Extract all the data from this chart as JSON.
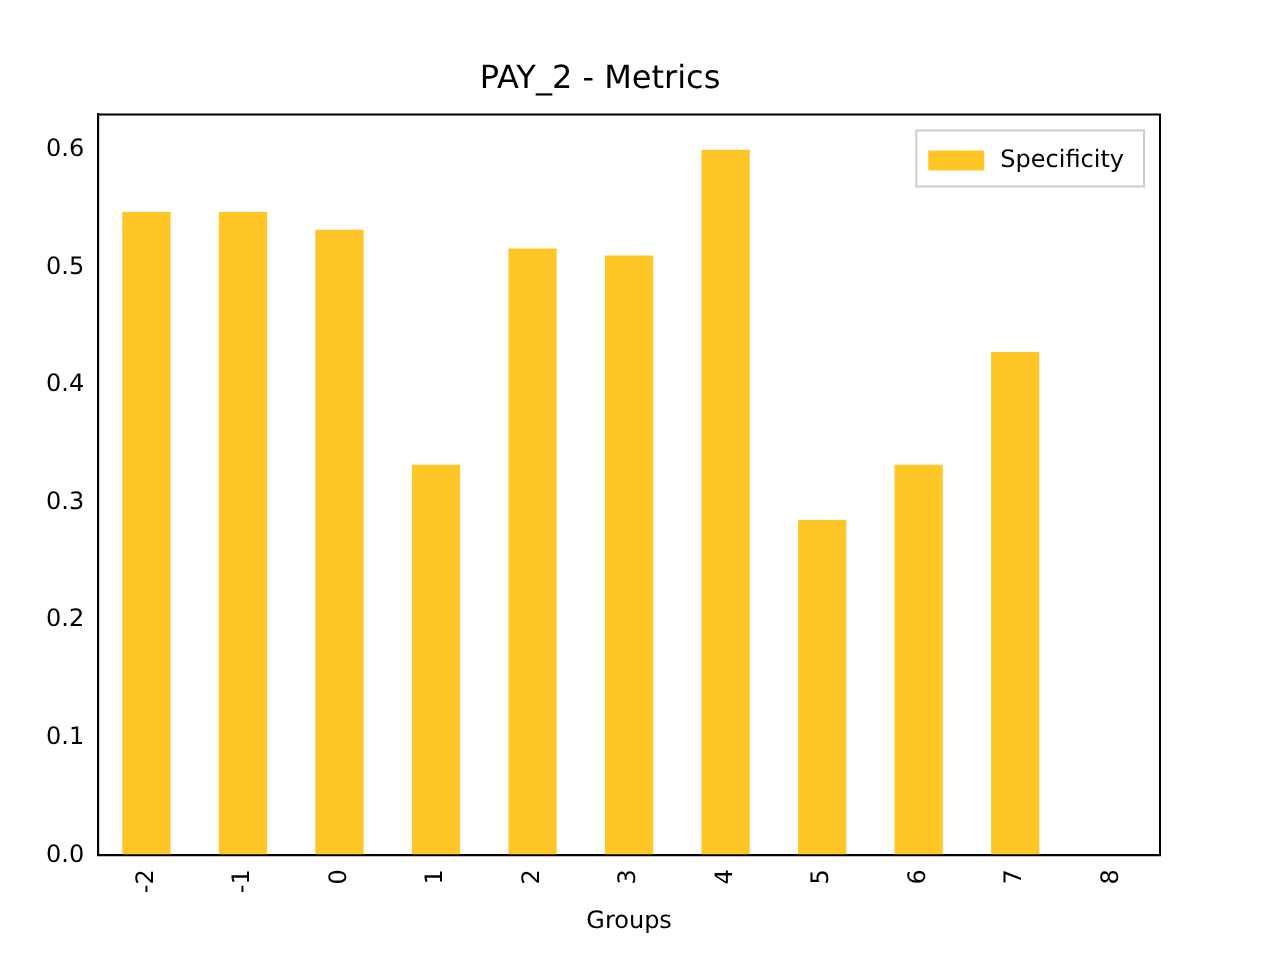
{
  "chart_data": {
    "type": "bar",
    "title": "PAY_2 - Metrics",
    "xlabel": "Groups",
    "categories": [
      "-2",
      "-1",
      "0",
      "1",
      "2",
      "3",
      "4",
      "5",
      "6",
      "7",
      "8"
    ],
    "series": [
      {
        "name": "Specificity",
        "color": "#ffc627",
        "values": [
          0.547,
          0.547,
          0.532,
          0.332,
          0.516,
          0.51,
          0.6,
          0.285,
          0.332,
          0.428,
          0
        ]
      }
    ],
    "ylim": [
      0,
      0.63
    ],
    "yticks": [
      {
        "value": 0,
        "label": "0.0"
      },
      0.1,
      0.2,
      0.3,
      0.4,
      0.5,
      0.6
    ],
    "grid": false,
    "legend": "top right"
  }
}
